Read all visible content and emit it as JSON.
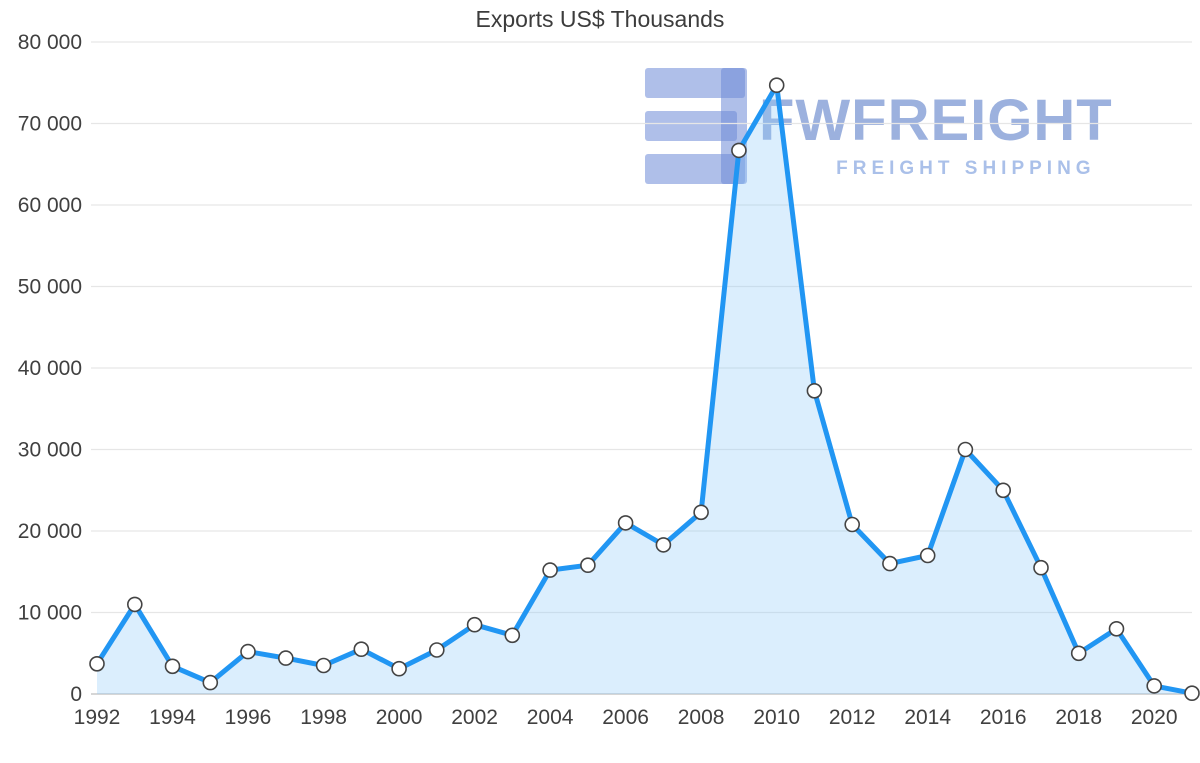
{
  "chart_data": {
    "type": "area",
    "title": "Exports US$ Thousands",
    "series_name": "Exports US$ Thousands",
    "x": [
      1992,
      1993,
      1994,
      1995,
      1996,
      1997,
      1998,
      1999,
      2000,
      2001,
      2002,
      2003,
      2004,
      2005,
      2006,
      2007,
      2008,
      2009,
      2010,
      2011,
      2012,
      2013,
      2014,
      2015,
      2016,
      2017,
      2018,
      2019,
      2020,
      2021
    ],
    "values": [
      3700,
      11000,
      3400,
      1400,
      5200,
      4400,
      3500,
      5500,
      3100,
      5400,
      8500,
      7200,
      15200,
      15800,
      21000,
      18300,
      22300,
      66700,
      74700,
      37200,
      20800,
      16000,
      17000,
      30000,
      25000,
      15500,
      5000,
      8000,
      1000,
      100
    ],
    "ylim": [
      0,
      80000
    ],
    "y_ticks": [
      {
        "value": 0,
        "label": "0"
      },
      {
        "value": 10000,
        "label": "10 000"
      },
      {
        "value": 20000,
        "label": "20 000"
      },
      {
        "value": 30000,
        "label": "30 000"
      },
      {
        "value": 40000,
        "label": "40 000"
      },
      {
        "value": 50000,
        "label": "50 000"
      },
      {
        "value": 60000,
        "label": "60 000"
      },
      {
        "value": 70000,
        "label": "70 000"
      },
      {
        "value": 80000,
        "label": "80 000"
      }
    ],
    "x_tick_years": [
      1992,
      1994,
      1996,
      1998,
      2000,
      2002,
      2004,
      2006,
      2008,
      2010,
      2012,
      2014,
      2016,
      2018,
      2020
    ],
    "grid": "horizontal",
    "legend": "none",
    "colors": {
      "line": "#2196f3",
      "fill": "rgba(144,202,249,0.32)",
      "point_fill": "#ffffff",
      "point_stroke": "#444444",
      "grid": "#e6e6e6",
      "zero_line": "#c9c9c9",
      "axis_text": "#404040"
    }
  },
  "watermark": {
    "brand": "FWFREIGHT",
    "tagline": "FREIGHT SHIPPING"
  }
}
